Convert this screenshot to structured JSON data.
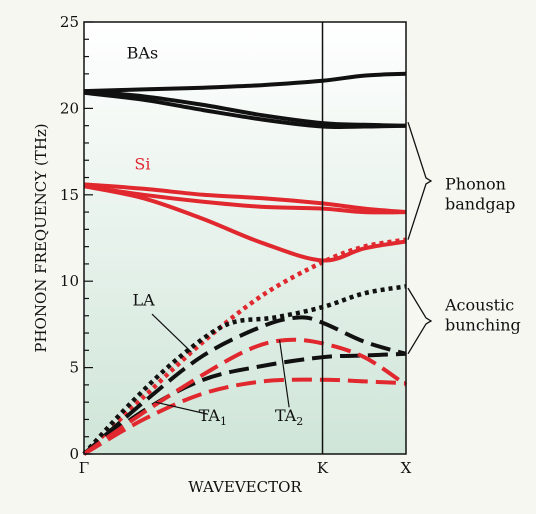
{
  "chart_data": {
    "type": "line",
    "title": "",
    "xlabel": "WAVEVECTOR",
    "ylabel": "PHONON FREQUENCY (THz)",
    "ylim": [
      0,
      25
    ],
    "y_ticks": [
      "0",
      "5",
      "10",
      "15",
      "20",
      "25"
    ],
    "x_ticks": [
      {
        "label": "Γ",
        "x": 0
      },
      {
        "label": "K",
        "x": 1
      },
      {
        "label": "X",
        "x": 1.35
      }
    ],
    "xlim": [
      0,
      1.35
    ],
    "grid": false,
    "background": "gradient white to light green",
    "series_labels": [
      {
        "text": "BAs",
        "color": "#111111"
      },
      {
        "text": "Si",
        "color": "#e0282e"
      }
    ],
    "branch_labels": [
      {
        "text": "LA",
        "sub": ""
      },
      {
        "text": "TA",
        "sub": "1"
      },
      {
        "text": "TA",
        "sub": "2"
      }
    ],
    "annotations": [
      {
        "lines": [
          "Phonon",
          "bandgap"
        ]
      },
      {
        "lines": [
          "Acoustic",
          "bunching"
        ]
      }
    ],
    "colors": {
      "BAs": "#111111",
      "Si": "#e0282e"
    },
    "series": [
      {
        "material": "BAs",
        "style": "solid",
        "x": [
          0,
          0.25,
          0.5,
          0.75,
          1.0,
          1.175,
          1.35
        ],
        "y": [
          21.0,
          21.1,
          21.2,
          21.35,
          21.6,
          21.9,
          22.0
        ]
      },
      {
        "material": "BAs",
        "style": "solid",
        "x": [
          0,
          0.25,
          0.5,
          0.75,
          1.0,
          1.175,
          1.35
        ],
        "y": [
          21.0,
          20.7,
          20.2,
          19.6,
          19.15,
          19.05,
          19.0
        ]
      },
      {
        "material": "BAs",
        "style": "solid",
        "x": [
          0,
          0.25,
          0.5,
          0.75,
          1.0,
          1.175,
          1.35
        ],
        "y": [
          20.9,
          20.5,
          19.9,
          19.35,
          18.95,
          18.95,
          19.0
        ]
      },
      {
        "material": "Si",
        "style": "solid",
        "x": [
          0,
          0.25,
          0.5,
          0.75,
          1.0,
          1.175,
          1.35
        ],
        "y": [
          15.6,
          15.35,
          15.0,
          14.8,
          14.5,
          14.2,
          14.0
        ]
      },
      {
        "material": "Si",
        "style": "solid",
        "x": [
          0,
          0.25,
          0.5,
          0.75,
          1.0,
          1.175,
          1.35
        ],
        "y": [
          15.5,
          15.0,
          14.6,
          14.3,
          14.2,
          14.0,
          14.0
        ]
      },
      {
        "material": "Si",
        "style": "solid",
        "x": [
          0,
          0.25,
          0.5,
          0.75,
          1.0,
          1.175,
          1.35
        ],
        "y": [
          15.5,
          14.8,
          13.6,
          12.2,
          11.2,
          11.9,
          12.3
        ]
      },
      {
        "material": "Si",
        "style": "dotted",
        "branch": "LA",
        "x": [
          0,
          0.25,
          0.5,
          0.75,
          1.0,
          1.175,
          1.35
        ],
        "y": [
          0,
          3.3,
          6.5,
          9.2,
          11.1,
          12.0,
          12.4
        ]
      },
      {
        "material": "BAs",
        "style": "dotted",
        "branch": "LA",
        "x": [
          0,
          0.2,
          0.4,
          0.6,
          0.8,
          1.0,
          1.175,
          1.35
        ],
        "y": [
          0,
          3.0,
          5.6,
          7.5,
          7.9,
          8.5,
          9.3,
          9.7
        ]
      },
      {
        "material": "BAs",
        "style": "dashed",
        "branch": "TA2",
        "x": [
          0,
          0.25,
          0.5,
          0.75,
          0.9,
          1.0,
          1.175,
          1.35
        ],
        "y": [
          0,
          3.0,
          5.7,
          7.4,
          7.9,
          7.6,
          6.5,
          5.8
        ]
      },
      {
        "material": "BAs",
        "style": "dashed",
        "branch": "TA1",
        "x": [
          0,
          0.25,
          0.5,
          0.75,
          1.0,
          1.175,
          1.35
        ],
        "y": [
          0,
          2.5,
          4.3,
          5.1,
          5.6,
          5.7,
          5.8
        ]
      },
      {
        "material": "Si",
        "style": "dashed",
        "branch": "TA2",
        "x": [
          0,
          0.25,
          0.5,
          0.7,
          0.85,
          1.0,
          1.175,
          1.35
        ],
        "y": [
          0,
          2.4,
          4.6,
          6.1,
          6.6,
          6.4,
          5.6,
          4.0
        ]
      },
      {
        "material": "Si",
        "style": "dashed",
        "branch": "TA1",
        "x": [
          0,
          0.25,
          0.5,
          0.75,
          1.0,
          1.175,
          1.35
        ],
        "y": [
          0,
          2.0,
          3.5,
          4.2,
          4.3,
          4.2,
          4.1
        ]
      }
    ]
  }
}
